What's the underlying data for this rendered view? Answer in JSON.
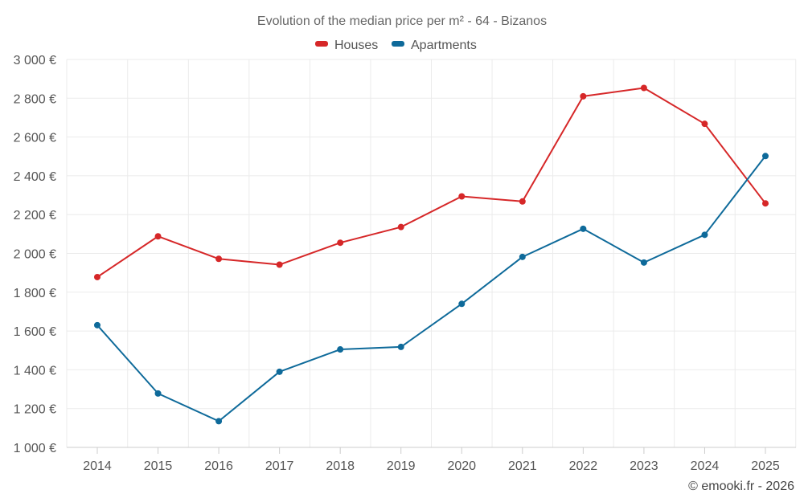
{
  "chart_data": {
    "type": "line",
    "title": "Evolution of the median price per m² - 64 - Bizanos",
    "categories": [
      "2014",
      "2015",
      "2016",
      "2017",
      "2018",
      "2019",
      "2020",
      "2021",
      "2022",
      "2023",
      "2024",
      "2025"
    ],
    "series": [
      {
        "name": "Houses",
        "color": "#d62728",
        "values": [
          1878,
          2088,
          1972,
          1942,
          2055,
          2136,
          2294,
          2268,
          2810,
          2853,
          2668,
          2258
        ]
      },
      {
        "name": "Apartments",
        "color": "#0e6a9a",
        "values": [
          1630,
          1278,
          1135,
          1390,
          1505,
          1518,
          1740,
          1982,
          2127,
          1953,
          2096,
          2502
        ]
      }
    ],
    "ylim": [
      1000,
      3000
    ],
    "yticks": [
      {
        "value": 1000,
        "label": "1 000 €"
      },
      {
        "value": 1200,
        "label": "1 200 €"
      },
      {
        "value": 1400,
        "label": "1 400 €"
      },
      {
        "value": 1600,
        "label": "1 600 €"
      },
      {
        "value": 1800,
        "label": "1 800 €"
      },
      {
        "value": 2000,
        "label": "2 000 €"
      },
      {
        "value": 2200,
        "label": "2 200 €"
      },
      {
        "value": 2400,
        "label": "2 400 €"
      },
      {
        "value": 2600,
        "label": "2 600 €"
      },
      {
        "value": 2800,
        "label": "2 800 €"
      },
      {
        "value": 3000,
        "label": "3 000 €"
      }
    ],
    "xlabel": "",
    "ylabel": "",
    "grid": true,
    "legend_position": "top-center"
  },
  "credit": "© emooki.fr - 2026"
}
